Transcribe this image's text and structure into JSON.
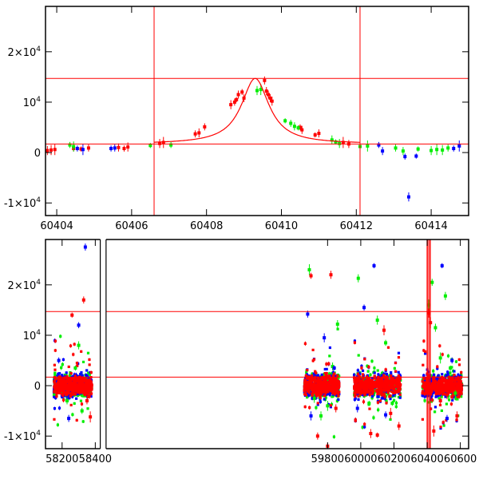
{
  "chart_data": [
    {
      "type": "scatter",
      "title": "",
      "xlabel": "",
      "ylabel": "",
      "xlim": [
        60403.7,
        60415
      ],
      "ylim": [
        -12500,
        29000
      ],
      "xticks": [
        60404,
        60406,
        60408,
        60410,
        60412,
        60414
      ],
      "yticks": [
        -10000,
        0,
        10000,
        20000
      ],
      "ytick_labels": [
        {
          "mant": "-1×10",
          "exp": "4"
        },
        {
          "mant": "0",
          "exp": ""
        },
        {
          "mant": "10",
          "exp": "4"
        },
        {
          "mant": "2×10",
          "exp": "4"
        }
      ],
      "hlines": [
        14700,
        1700
      ],
      "vlines": [
        60406.6,
        60412.1
      ],
      "model": {
        "t0": 60409.3,
        "peak": 13000,
        "base": 1700,
        "tau": 0.45
      },
      "series": [
        {
          "color": "#ff0000",
          "points": [
            [
              60403.75,
              400
            ],
            [
              60403.85,
              500
            ],
            [
              60403.95,
              600
            ],
            [
              60404.45,
              800
            ],
            [
              60404.65,
              700
            ],
            [
              60404.85,
              900
            ],
            [
              60405.65,
              1000
            ],
            [
              60405.8,
              800
            ],
            [
              60405.9,
              1100
            ],
            [
              60406.75,
              1800
            ],
            [
              60406.85,
              2000
            ],
            [
              60407.7,
              3700
            ],
            [
              60407.8,
              3900
            ],
            [
              60407.95,
              5100
            ],
            [
              60408.65,
              9500
            ],
            [
              60408.75,
              10000
            ],
            [
              60408.8,
              10500
            ],
            [
              60408.85,
              11500
            ],
            [
              60408.95,
              12000
            ],
            [
              60409.0,
              10800
            ],
            [
              60409.55,
              14300
            ],
            [
              60409.6,
              12200
            ],
            [
              60409.65,
              11500
            ],
            [
              60409.7,
              10800
            ],
            [
              60409.75,
              10200
            ],
            [
              60410.5,
              5000
            ],
            [
              60410.55,
              4500
            ],
            [
              60410.9,
              3500
            ],
            [
              60411.0,
              3800
            ],
            [
              60411.65,
              2000
            ],
            [
              60411.8,
              1700
            ]
          ]
        },
        {
          "color": "#00ee00",
          "points": [
            [
              60404.35,
              1500
            ],
            [
              60404.45,
              1200
            ],
            [
              60406.5,
              1400
            ],
            [
              60407.05,
              1500
            ],
            [
              60409.35,
              12300
            ],
            [
              60409.45,
              12500
            ],
            [
              60410.1,
              6300
            ],
            [
              60410.25,
              5800
            ],
            [
              60410.35,
              5200
            ],
            [
              60410.45,
              4900
            ],
            [
              60411.35,
              2500
            ],
            [
              60411.45,
              2100
            ],
            [
              60411.55,
              1800
            ],
            [
              60412.1,
              1200
            ],
            [
              60412.3,
              1300
            ],
            [
              60413.05,
              900
            ],
            [
              60413.25,
              300
            ],
            [
              60413.65,
              700
            ],
            [
              60414.0,
              400
            ],
            [
              60414.15,
              600
            ],
            [
              60414.3,
              500
            ],
            [
              60414.45,
              900
            ]
          ]
        },
        {
          "color": "#0000ff",
          "points": [
            [
              60404.55,
              800
            ],
            [
              60404.7,
              600
            ],
            [
              60405.45,
              800
            ],
            [
              60405.55,
              900
            ],
            [
              60412.6,
              1500
            ],
            [
              60412.7,
              300
            ],
            [
              60413.3,
              -800
            ],
            [
              60413.4,
              -8800
            ],
            [
              60413.6,
              -700
            ],
            [
              60414.6,
              800
            ],
            [
              60414.75,
              1300
            ]
          ]
        }
      ]
    },
    {
      "type": "scatter",
      "title": "",
      "xlabel": "",
      "ylabel": "",
      "xlim": [
        58100,
        60650
      ],
      "ylim": [
        -12500,
        29000
      ],
      "xticks": [
        58200,
        58400,
        59800,
        60000,
        60200,
        60400,
        60600
      ],
      "yticks": [
        -10000,
        0,
        10000,
        20000
      ],
      "ytick_labels": [
        {
          "mant": "-1×10",
          "exp": "4"
        },
        {
          "mant": "0",
          "exp": ""
        },
        {
          "mant": "10",
          "exp": "4"
        },
        {
          "mant": "2×10",
          "exp": "4"
        }
      ],
      "hlines": [
        14700,
        1700
      ],
      "vlines": [
        60406.6,
        60412.1
      ],
      "axis_break": [
        58430,
        58465
      ],
      "seasons": [
        [
          58150,
          58380
        ],
        [
          59660,
          59870
        ],
        [
          59960,
          60240
        ],
        [
          60370,
          60610
        ]
      ],
      "series": [
        {
          "color": "#00ee00",
          "points": [
            [
              58230,
              -3000
            ],
            [
              58280,
              3500
            ],
            [
              58300,
              8000
            ],
            [
              58320,
              -5000
            ],
            [
              59690,
              23000
            ],
            [
              59720,
              -2500
            ],
            [
              59760,
              -6000
            ],
            [
              59800,
              -4000
            ],
            [
              59830,
              3800
            ],
            [
              59860,
              12200
            ],
            [
              59985,
              21300
            ],
            [
              60050,
              -3500
            ],
            [
              60100,
              13000
            ],
            [
              60150,
              8500
            ],
            [
              60190,
              -3500
            ],
            [
              60410,
              16000
            ],
            [
              60430,
              20500
            ],
            [
              60450,
              11500
            ],
            [
              60480,
              5500
            ],
            [
              60510,
              17800
            ],
            [
              60540,
              3500
            ],
            [
              60570,
              -1500
            ]
          ]
        },
        {
          "color": "#0000ff",
          "points": [
            [
              58180,
              5000
            ],
            [
              58240,
              -6500
            ],
            [
              58300,
              12000
            ],
            [
              58340,
              27500
            ],
            [
              59680,
              14200
            ],
            [
              59700,
              -6000
            ],
            [
              59780,
              9500
            ],
            [
              59840,
              3500
            ],
            [
              59980,
              -4500
            ],
            [
              60020,
              15500
            ],
            [
              60080,
              23800
            ],
            [
              60150,
              -5800
            ],
            [
              60420,
              1000
            ],
            [
              60460,
              1500
            ],
            [
              60490,
              23800
            ],
            [
              60520,
              -6500
            ],
            [
              60550,
              5000
            ]
          ]
        },
        {
          "color": "#ff0000",
          "points": [
            [
              58260,
              14000
            ],
            [
              58330,
              17000
            ],
            [
              58350,
              -3000
            ],
            [
              58370,
              -6200
            ],
            [
              59700,
              21800
            ],
            [
              59740,
              -10000
            ],
            [
              59800,
              -12000
            ],
            [
              59820,
              22000
            ],
            [
              59850,
              -4500
            ],
            [
              60000,
              -1500
            ],
            [
              60060,
              -9500
            ],
            [
              60100,
              -9800
            ],
            [
              60140,
              11000
            ],
            [
              60180,
              -5500
            ],
            [
              60230,
              -8000
            ],
            [
              60410,
              14400
            ],
            [
              60420,
              12500
            ],
            [
              60440,
              -9000
            ],
            [
              60480,
              -3000
            ],
            [
              60520,
              -1800
            ],
            [
              60550,
              -2200
            ],
            [
              60580,
              -6000
            ]
          ]
        }
      ]
    }
  ]
}
